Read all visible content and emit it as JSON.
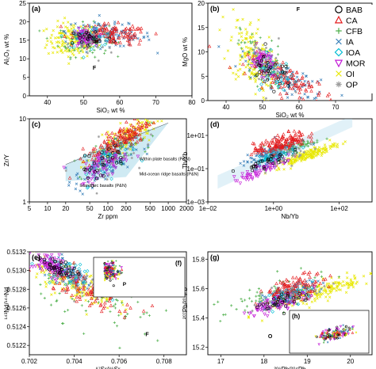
{
  "chart_data": [
    {
      "type": "scatter",
      "panel_label": "(a)",
      "xlabel": "SiO₂ wt %",
      "ylabel": "Al₂O₃ wt %",
      "xlim": [
        35,
        80
      ],
      "ylim": [
        0,
        25
      ],
      "xscale": "linear",
      "yscale": "linear",
      "xticks": [
        "40",
        "50",
        "60",
        "70",
        "80"
      ],
      "yticks": [
        "0",
        "5",
        "10",
        "15",
        "20",
        "25"
      ],
      "annotations": [
        "F"
      ]
    },
    {
      "type": "scatter",
      "panel_label": "(b)",
      "xlabel": "SiO₂ wt %",
      "ylabel": "MgO wt %",
      "xlim": [
        35,
        80
      ],
      "ylim": [
        0,
        20
      ],
      "xscale": "linear",
      "yscale": "linear",
      "xticks": [
        "40",
        "50",
        "60",
        "70"
      ],
      "yticks": [
        "0",
        "5",
        "10",
        "15",
        "20"
      ],
      "annotations": [
        "F"
      ]
    },
    {
      "type": "scatter",
      "panel_label": "(c)",
      "xlabel": "Zr ppm",
      "ylabel": "Zr/Y",
      "xlim": [
        5,
        2000
      ],
      "ylim": [
        1,
        10
      ],
      "xscale": "log",
      "yscale": "log",
      "xticks": [
        "5",
        "10",
        "20",
        "50",
        "100",
        "200",
        "500",
        "1000",
        "2000"
      ],
      "yticks": [
        "1",
        "10"
      ],
      "annotations": [
        "Within plate basalts (P&N)",
        "Mid-ocean ridge basalts (P&N)",
        "Island arc basalts (P&N)"
      ]
    },
    {
      "type": "scatter",
      "panel_label": "(d)",
      "xlabel": "Nb/Yb",
      "ylabel": "Th/Yb",
      "xlim": [
        0.01,
        1000
      ],
      "ylim": [
        0.001,
        100
      ],
      "xscale": "log",
      "yscale": "log",
      "xticks": [
        "1e−02",
        "1e+00",
        "1e+02"
      ],
      "yticks": [
        "1e−03",
        "1e−01",
        "1e+01"
      ]
    },
    {
      "type": "scatter",
      "panel_label": "(e)",
      "xlabel": "⁸⁷Sr/⁸⁶Sr",
      "ylabel": "¹⁴³Nd/¹⁴⁴Nd",
      "xlim": [
        0.702,
        0.709
      ],
      "ylim": [
        0.5121,
        0.5132
      ],
      "xscale": "linear",
      "yscale": "linear",
      "xticks": [
        "0.702",
        "0.704",
        "0.706",
        "0.708"
      ],
      "yticks": [
        "0.5122",
        "0.5124",
        "0.5126",
        "0.5128",
        "0.5130",
        "0.5132"
      ],
      "annotations": [
        "F"
      ]
    },
    {
      "type": "scatter",
      "panel_label": "(f)",
      "inset_of": "(e)",
      "annotations": [
        "P"
      ]
    },
    {
      "type": "scatter",
      "panel_label": "(g)",
      "xlabel": "²⁰⁶Pb/²⁰⁴Pb",
      "ylabel": "²⁰⁷Pb/²⁰⁴Pb",
      "xlim": [
        16.7,
        20.5
      ],
      "ylim": [
        15.15,
        15.85
      ],
      "xscale": "linear",
      "yscale": "linear",
      "xticks": [
        "17",
        "18",
        "19",
        "20"
      ],
      "yticks": [
        "15.2",
        "15.4",
        "15.6",
        "15.8"
      ],
      "annotations": [
        "O"
      ]
    },
    {
      "type": "scatter",
      "panel_label": "(h)",
      "inset_of": "(g)"
    }
  ],
  "legend": {
    "placement": "top-right",
    "entries": [
      {
        "label": "BAB",
        "marker": "circle",
        "color": "#000000"
      },
      {
        "label": "CA",
        "marker": "triangle",
        "color": "#e41a1c"
      },
      {
        "label": "CFB",
        "marker": "plus",
        "color": "#4daf4a"
      },
      {
        "label": "IA",
        "marker": "cross",
        "color": "#377eb8"
      },
      {
        "label": "IOA",
        "marker": "diamond",
        "color": "#00bcd4"
      },
      {
        "label": "MOR",
        "marker": "triangle-down",
        "color": "#c218d6"
      },
      {
        "label": "OI",
        "marker": "cross",
        "color": "#e8e800"
      },
      {
        "label": "OP",
        "marker": "star",
        "color": "#9e9e9e"
      }
    ]
  },
  "colors": {
    "BAB": "#000000",
    "CA": "#e41a1c",
    "CFB": "#4daf4a",
    "IA": "#377eb8",
    "IOA": "#00bcd4",
    "MOR": "#c218d6",
    "OI": "#e8e800",
    "OP": "#9e9e9e",
    "field": "#a8d8ea"
  }
}
